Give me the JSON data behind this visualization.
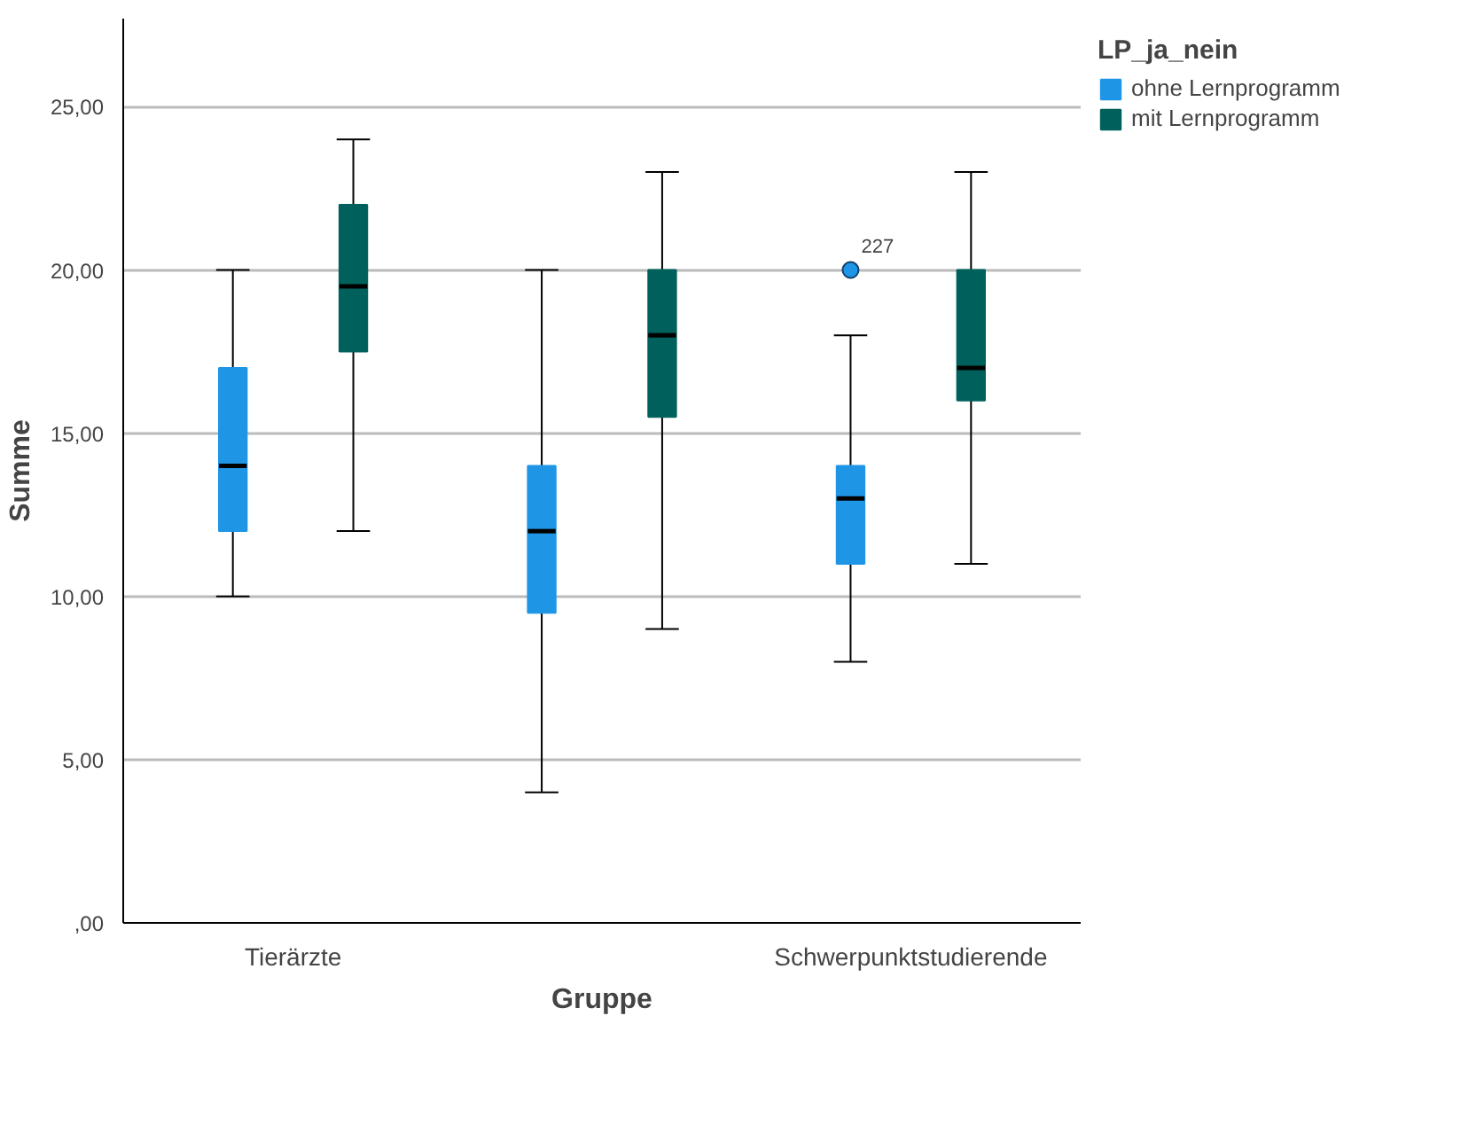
{
  "chart_data": {
    "type": "box",
    "xlabel": "Gruppe",
    "ylabel": "Summe",
    "legend_title": "LP_ja_nein",
    "legend": "top right",
    "grid": "y",
    "categories": [
      "Tierärzte",
      null,
      "Schwerpunktstudierende"
    ],
    "ylim": [
      0,
      27.7
    ],
    "yticks": [
      {
        "value": 0,
        "label": ",00"
      },
      {
        "value": 5,
        "label": "5,00"
      },
      {
        "value": 10,
        "label": "10,00"
      },
      {
        "value": 15,
        "label": "15,00"
      },
      {
        "value": 20,
        "label": "20,00"
      },
      {
        "value": 25,
        "label": "25,00"
      }
    ],
    "series": [
      {
        "name": "ohne Lernprogramm",
        "color": "#1f95e6",
        "boxes": [
          {
            "low": 10,
            "q1": 12,
            "median": 14,
            "q3": 17,
            "high": 20
          },
          {
            "low": 4,
            "q1": 9.5,
            "median": 12,
            "q3": 14,
            "high": 20
          },
          {
            "low": 8,
            "q1": 11,
            "median": 13,
            "q3": 14,
            "high": 18,
            "outliers": [
              20
            ]
          }
        ]
      },
      {
        "name": "mit Lernprogramm",
        "color": "#00605b",
        "boxes": [
          {
            "low": 12,
            "q1": 17.5,
            "median": 19.5,
            "q3": 22,
            "high": 24
          },
          {
            "low": 9,
            "q1": 15.5,
            "median": 18,
            "q3": 20,
            "high": 23
          },
          {
            "low": 11,
            "q1": 16,
            "median": 17,
            "q3": 20,
            "high": 23
          }
        ]
      }
    ],
    "annotations": [
      "227"
    ]
  }
}
